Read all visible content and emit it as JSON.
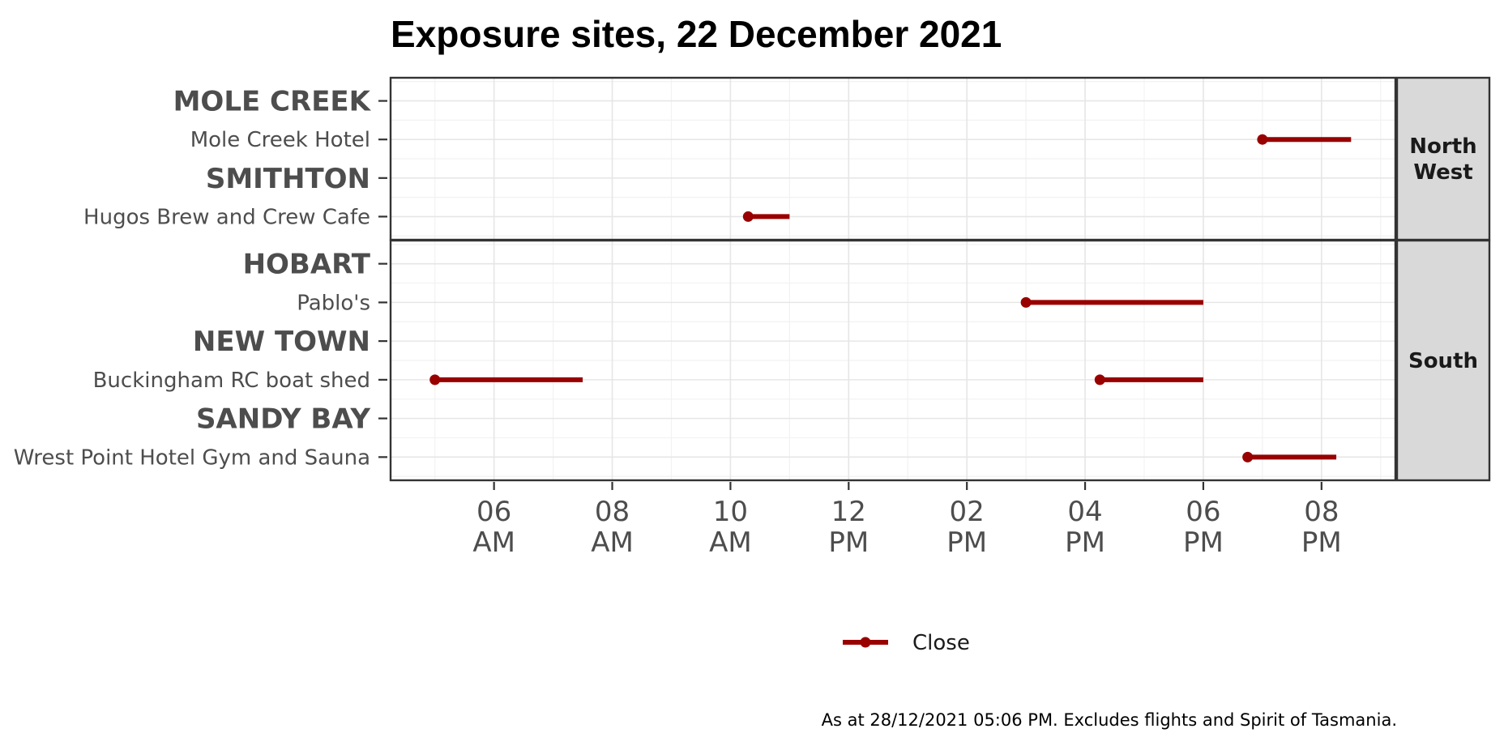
{
  "chart_data": {
    "type": "dumbbell",
    "title": "Exposure sites, 22 December 2021",
    "xlabel": "",
    "ylabel": "",
    "x_unit": "hour of day",
    "xlim": [
      4.25,
      21.25
    ],
    "x_ticks": [
      {
        "value": 6,
        "label": [
          "06",
          "AM"
        ]
      },
      {
        "value": 8,
        "label": [
          "08",
          "AM"
        ]
      },
      {
        "value": 10,
        "label": [
          "10",
          "AM"
        ]
      },
      {
        "value": 12,
        "label": [
          "12",
          "PM"
        ]
      },
      {
        "value": 14,
        "label": [
          "02",
          "PM"
        ]
      },
      {
        "value": 16,
        "label": [
          "04",
          "PM"
        ]
      },
      {
        "value": 18,
        "label": [
          "06",
          "PM"
        ]
      },
      {
        "value": 20,
        "label": [
          "08",
          "PM"
        ]
      }
    ],
    "grid": true,
    "legend": {
      "position": "bottom",
      "entries": [
        "Close"
      ]
    },
    "series_color": "#990000",
    "panels": [
      {
        "name": "North West",
        "rows": [
          {
            "label": "MOLE CREEK",
            "kind": "town",
            "intervals": []
          },
          {
            "label": "Mole Creek Hotel",
            "kind": "site",
            "intervals": [
              {
                "start": 19.0,
                "end": 20.5
              }
            ]
          },
          {
            "label": "SMITHTON",
            "kind": "town",
            "intervals": []
          },
          {
            "label": "Hugos Brew and Crew Cafe",
            "kind": "site",
            "intervals": [
              {
                "start": 10.3,
                "end": 11.0
              }
            ]
          }
        ]
      },
      {
        "name": "South",
        "rows": [
          {
            "label": "HOBART",
            "kind": "town",
            "intervals": []
          },
          {
            "label": "Pablo's",
            "kind": "site",
            "intervals": [
              {
                "start": 15.0,
                "end": 18.0
              }
            ]
          },
          {
            "label": "NEW TOWN",
            "kind": "town",
            "intervals": []
          },
          {
            "label": "Buckingham RC boat shed",
            "kind": "site",
            "intervals": [
              {
                "start": 5.0,
                "end": 7.5
              },
              {
                "start": 16.25,
                "end": 18.0
              }
            ]
          },
          {
            "label": "SANDY BAY",
            "kind": "town",
            "intervals": []
          },
          {
            "label": "Wrest Point Hotel Gym and Sauna",
            "kind": "site",
            "intervals": [
              {
                "start": 18.75,
                "end": 20.25
              }
            ]
          }
        ]
      }
    ],
    "caption": "As at 28/12/2021 05:06 PM. Excludes flights and Spirit of Tasmania."
  }
}
